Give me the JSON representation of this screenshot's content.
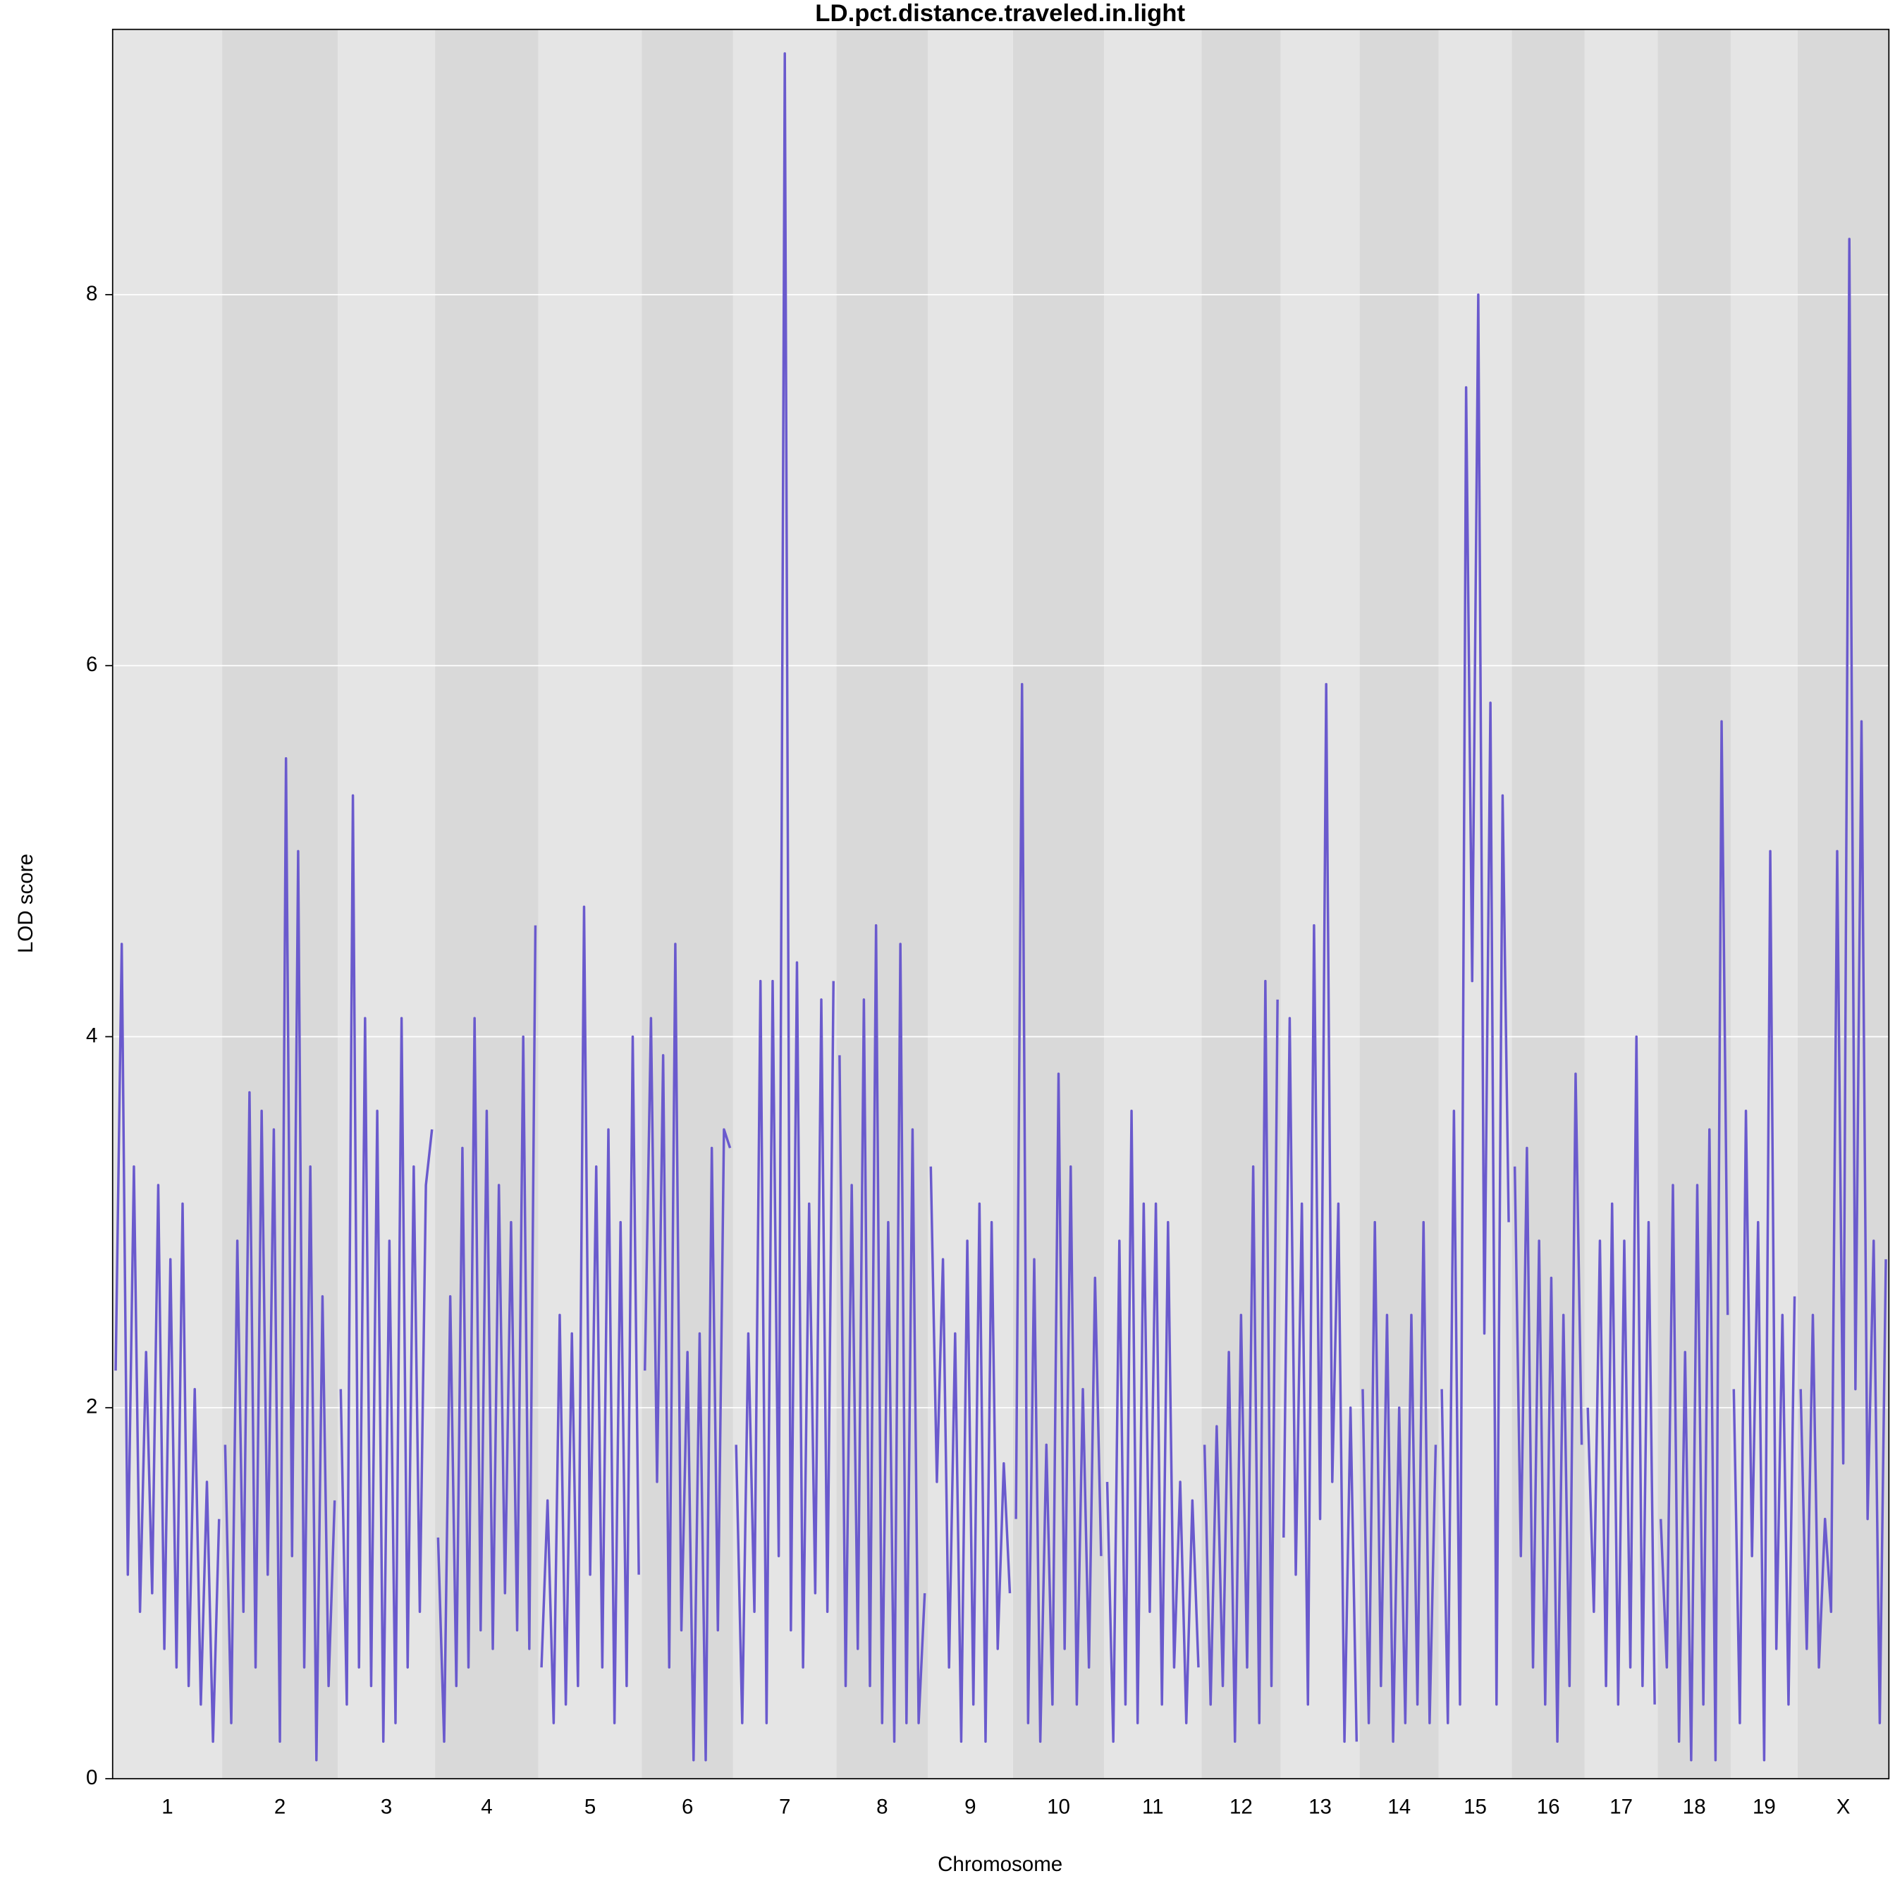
{
  "chart_data": {
    "type": "line",
    "title": "LD.pct.distance.traveled.in.light",
    "x_label": "Chromosome",
    "y_label": "LOD score",
    "color": "#6a5acd",
    "band_colors": [
      "#e5e5e5",
      "#d9d9d9"
    ],
    "ylim": [
      0,
      9.43
    ],
    "yticks": [
      0,
      2,
      4,
      6,
      8
    ],
    "grid": true,
    "chromosomes": [
      {
        "name": "1",
        "values": [
          2.2,
          4.5,
          1.1,
          3.3,
          0.9,
          2.3,
          1.0,
          3.2,
          0.7,
          2.8,
          0.6,
          3.1,
          0.5,
          2.1,
          0.4,
          1.6,
          0.2,
          1.4
        ]
      },
      {
        "name": "2",
        "values": [
          1.8,
          0.3,
          2.9,
          0.9,
          3.7,
          0.6,
          3.6,
          1.1,
          3.5,
          0.2,
          5.5,
          1.2,
          5.0,
          0.6,
          3.3,
          0.1,
          2.6,
          0.5,
          1.5
        ]
      },
      {
        "name": "3",
        "values": [
          2.1,
          0.4,
          5.3,
          0.6,
          4.1,
          0.5,
          3.6,
          0.2,
          2.9,
          0.3,
          4.1,
          0.6,
          3.3,
          0.9,
          3.2,
          3.5
        ]
      },
      {
        "name": "4",
        "values": [
          1.3,
          0.2,
          2.6,
          0.5,
          3.4,
          0.6,
          4.1,
          0.8,
          3.6,
          0.7,
          3.2,
          1.0,
          3.0,
          0.8,
          4.0,
          0.7,
          4.6
        ]
      },
      {
        "name": "5",
        "values": [
          0.6,
          1.5,
          0.3,
          2.5,
          0.4,
          2.4,
          0.5,
          4.7,
          1.1,
          3.3,
          0.6,
          3.5,
          0.3,
          3.0,
          0.5,
          4.0,
          1.1
        ]
      },
      {
        "name": "6",
        "values": [
          2.2,
          4.1,
          1.6,
          3.9,
          0.6,
          4.5,
          0.8,
          2.3,
          0.1,
          2.4,
          0.1,
          3.4,
          0.8,
          3.5,
          3.4
        ]
      },
      {
        "name": "7",
        "values": [
          1.8,
          0.3,
          2.4,
          0.9,
          4.3,
          0.3,
          4.3,
          1.2,
          9.3,
          0.8,
          4.4,
          0.6,
          3.1,
          1.0,
          4.2,
          0.9,
          4.3
        ]
      },
      {
        "name": "8",
        "values": [
          3.9,
          0.5,
          3.2,
          0.7,
          4.2,
          0.5,
          4.6,
          0.3,
          3.0,
          0.2,
          4.5,
          0.3,
          3.5,
          0.3,
          1.0
        ]
      },
      {
        "name": "9",
        "values": [
          3.3,
          1.6,
          2.8,
          0.6,
          2.4,
          0.2,
          2.9,
          0.4,
          3.1,
          0.2,
          3.0,
          0.7,
          1.7,
          1.0
        ]
      },
      {
        "name": "10",
        "values": [
          1.4,
          5.9,
          0.3,
          2.8,
          0.2,
          1.8,
          0.4,
          3.8,
          0.7,
          3.3,
          0.4,
          2.1,
          0.6,
          2.7,
          1.2
        ]
      },
      {
        "name": "11",
        "values": [
          1.6,
          0.2,
          2.9,
          0.4,
          3.6,
          0.3,
          3.1,
          0.9,
          3.1,
          0.4,
          3.0,
          0.6,
          1.6,
          0.3,
          1.5,
          0.6
        ]
      },
      {
        "name": "12",
        "values": [
          1.8,
          0.4,
          1.9,
          0.5,
          2.3,
          0.2,
          2.5,
          0.6,
          3.3,
          0.3,
          4.3,
          0.5,
          4.2
        ]
      },
      {
        "name": "13",
        "values": [
          1.3,
          4.1,
          1.1,
          3.1,
          0.4,
          4.6,
          1.4,
          5.9,
          1.6,
          3.1,
          0.2,
          2.0,
          0.2
        ]
      },
      {
        "name": "14",
        "values": [
          2.1,
          0.3,
          3.0,
          0.5,
          2.5,
          0.2,
          2.0,
          0.3,
          2.5,
          0.4,
          3.0,
          0.3,
          1.8
        ]
      },
      {
        "name": "15",
        "values": [
          2.1,
          0.3,
          3.6,
          0.4,
          7.5,
          4.3,
          8.0,
          2.4,
          5.8,
          0.4,
          5.3,
          3.0
        ]
      },
      {
        "name": "16",
        "values": [
          3.3,
          1.2,
          3.4,
          0.6,
          2.9,
          0.4,
          2.7,
          0.2,
          2.5,
          0.5,
          3.8,
          1.8
        ]
      },
      {
        "name": "17",
        "values": [
          2.0,
          0.9,
          2.9,
          0.5,
          3.1,
          0.4,
          2.9,
          0.6,
          4.0,
          0.5,
          3.0,
          0.4
        ]
      },
      {
        "name": "18",
        "values": [
          1.4,
          0.6,
          3.2,
          0.2,
          2.3,
          0.1,
          3.2,
          0.4,
          3.5,
          0.1,
          5.7,
          2.5
        ]
      },
      {
        "name": "19",
        "values": [
          2.1,
          0.3,
          3.6,
          1.2,
          3.0,
          0.1,
          5.0,
          0.7,
          2.5,
          0.4,
          2.6
        ]
      },
      {
        "name": "X",
        "values": [
          2.1,
          0.7,
          2.5,
          0.6,
          1.4,
          0.9,
          5.0,
          1.7,
          8.3,
          2.1,
          5.7,
          1.4,
          2.9,
          0.3,
          2.8
        ]
      }
    ]
  }
}
